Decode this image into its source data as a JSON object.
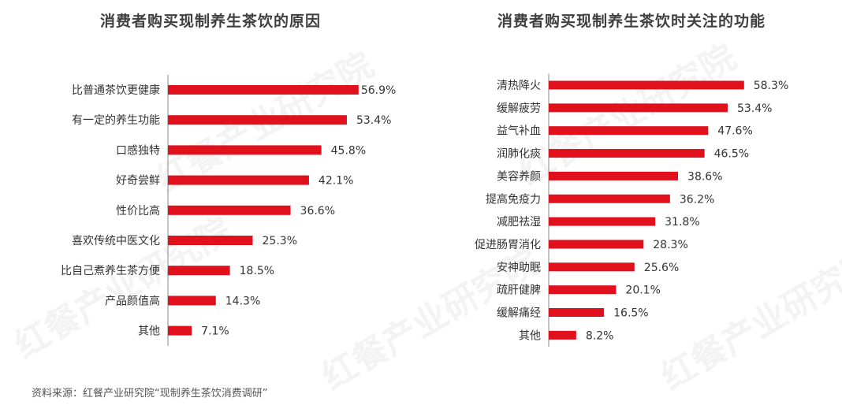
{
  "colors": {
    "bar": "#e0101c",
    "axis": "#888888",
    "text": "#333333"
  },
  "watermark": "红餐产业研究院",
  "source": "资料来源：红餐产业研究院“现制养生茶饮消费调研”",
  "chart_data": [
    {
      "type": "bar",
      "orientation": "horizontal",
      "title": "消费者购买现制养生茶饮的原因",
      "unit": "%",
      "categories": [
        "比普通茶饮更健康",
        "有一定的养生功能",
        "口感独特",
        "好奇尝鲜",
        "性价比高",
        "喜欢传统中医文化",
        "比自己煮养生茶方便",
        "产品颜值高",
        "其他"
      ],
      "values": [
        56.9,
        53.4,
        45.8,
        42.1,
        36.6,
        25.3,
        18.5,
        14.3,
        7.1
      ],
      "labels": [
        "56.9%",
        "53.4%",
        "45.8%",
        "42.1%",
        "36.6%",
        "25.3%",
        "18.5%",
        "14.3%",
        "7.1%"
      ]
    },
    {
      "type": "bar",
      "orientation": "horizontal",
      "title": "消费者购买现制养生茶饮时关注的功能",
      "unit": "%",
      "categories": [
        "清热降火",
        "缓解疲劳",
        "益气补血",
        "润肺化痰",
        "美容养颜",
        "提高免疫力",
        "减肥祛湿",
        "促进肠胃消化",
        "安神助眠",
        "疏肝健脾",
        "缓解痛经",
        "其他"
      ],
      "values": [
        58.3,
        53.4,
        47.6,
        46.5,
        38.6,
        36.2,
        31.8,
        28.3,
        25.6,
        20.1,
        16.5,
        8.2
      ],
      "labels": [
        "58.3%",
        "53.4%",
        "47.6%",
        "46.5%",
        "38.6%",
        "36.2%",
        "31.8%",
        "28.3%",
        "25.6%",
        "20.1%",
        "16.5%",
        "8.2%"
      ]
    }
  ]
}
